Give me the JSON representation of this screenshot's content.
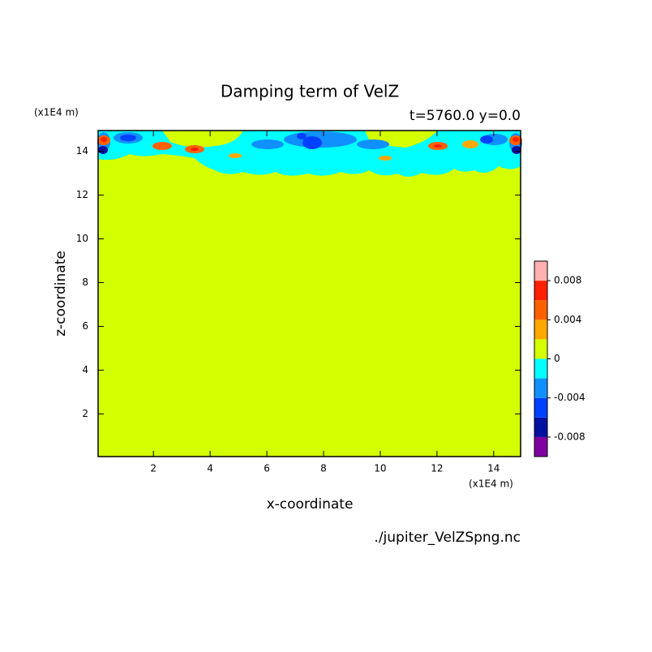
{
  "chart_data": {
    "type": "contour",
    "title": "Damping term of VelZ",
    "subtitle": "t=5760.0 y=0.0",
    "x_label": "x-coordinate",
    "y_label": "z-coordinate",
    "x_unit": "(x1E4 m)",
    "y_unit": "(x1E4 m)",
    "source": "./jupiter_VelZSpng.nc",
    "xlim": [
      0.05,
      14.95
    ],
    "xticks": [
      2,
      4,
      6,
      8,
      10,
      12,
      14
    ],
    "ylim": [
      0.05,
      14.95
    ],
    "yticks": [
      2,
      4,
      6,
      8,
      10,
      12,
      14
    ],
    "levels": [
      -0.01,
      -0.008,
      -0.006,
      -0.004,
      -0.002,
      0,
      0.002,
      0.004,
      0.006,
      0.008,
      0.01
    ],
    "colors": [
      "#8000a0",
      "#0010a0",
      "#0040ff",
      "#1090ff",
      "#00ffff",
      "#d4ff00",
      "#ffa800",
      "#ff6000",
      "#ff2000",
      "#ffb0b0"
    ],
    "colorbar_ticks": [
      -0.008,
      -0.004,
      0,
      0.004,
      0.008
    ]
  }
}
